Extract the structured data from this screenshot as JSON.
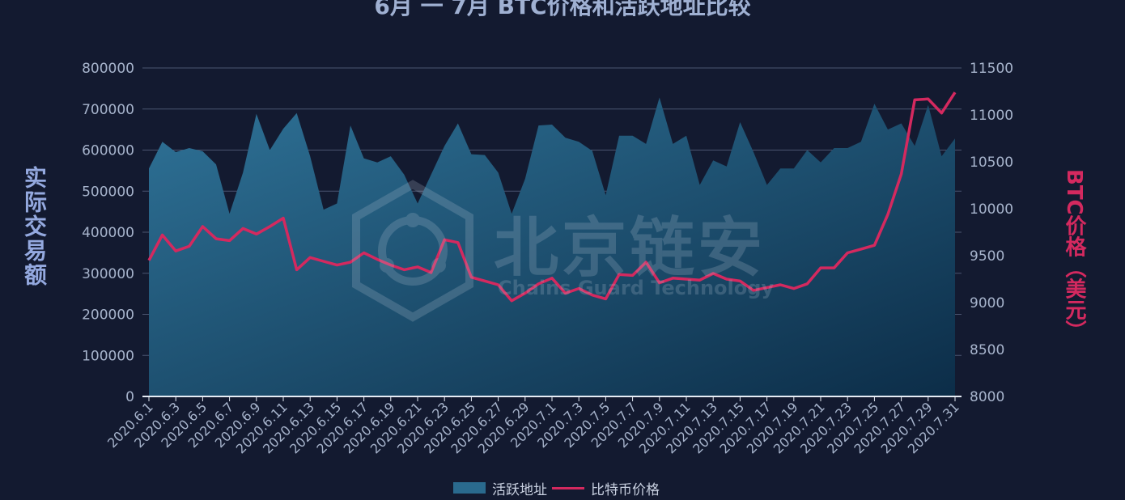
{
  "chart_data": {
    "type": "area+line",
    "title": "6月 一 7月 BTC价格和活跃地址比较",
    "y_left_label": "实际交易额",
    "y_right_label": "BTC价格（美元）",
    "y_left_lim": [
      0,
      800000
    ],
    "y_left_ticks": [
      "0",
      "100000",
      "200000",
      "300000",
      "400000",
      "500000",
      "600000",
      "700000",
      "800000"
    ],
    "y_right_lim": [
      8000,
      11500
    ],
    "y_right_ticks": [
      "8000",
      "8500",
      "9000",
      "9500",
      "10000",
      "10500",
      "11000",
      "11500"
    ],
    "x_tick_labels": [
      "2020.6.1",
      "2020.6.3",
      "2020.6.5",
      "2020.6.7",
      "2020.6.9",
      "2020.6.11",
      "2020.6.13",
      "2020.6.15",
      "2020.6.17",
      "2020.6.19",
      "2020.6.21",
      "2020.6.23",
      "2020.6.25",
      "2020.6.27",
      "2020.6.29",
      "2020.7.1",
      "2020.7.3",
      "2020.7.5",
      "2020.7.7",
      "2020.7.9",
      "2020.7.11",
      "2020.7.13",
      "2020.7.15",
      "2020.7.17",
      "2020.7.19",
      "2020.7.21",
      "2020.7.23",
      "2020.7.25",
      "2020.7.27",
      "2020.7.29",
      "2020.7.31"
    ],
    "legend": [
      "活跃地址",
      "比特币价格"
    ],
    "colors": {
      "area_top": "#2c6b8c",
      "area_bottom": "#0f3550",
      "line": "#d4295f",
      "grid": "#4b5570",
      "axis": "#e6ecf5",
      "tick_text": "#a7b4cc"
    },
    "series": [
      {
        "name": "活跃地址",
        "axis": "left",
        "type": "area",
        "values": [
          555000,
          620000,
          595000,
          605000,
          597000,
          565000,
          445000,
          545000,
          688000,
          600000,
          652000,
          690000,
          585000,
          455000,
          470000,
          660000,
          580000,
          570000,
          585000,
          540000,
          470000,
          540000,
          610000,
          665000,
          590000,
          588000,
          545000,
          445000,
          530000,
          660000,
          662000,
          630000,
          620000,
          598000,
          490000,
          635000,
          635000,
          615000,
          728000,
          615000,
          635000,
          515000,
          575000,
          560000,
          668000,
          595000,
          515000,
          555000,
          555000,
          600000,
          570000,
          605000,
          605000,
          620000,
          713000,
          650000,
          665000,
          610000,
          710000,
          585000,
          628000
        ]
      },
      {
        "name": "比特币价格",
        "axis": "right",
        "type": "line",
        "values": [
          9450,
          9720,
          9550,
          9600,
          9810,
          9680,
          9660,
          9790,
          9730,
          9810,
          9900,
          9350,
          9480,
          9440,
          9400,
          9430,
          9530,
          9460,
          9400,
          9350,
          9380,
          9320,
          9670,
          9640,
          9270,
          9230,
          9190,
          9020,
          9100,
          9200,
          9260,
          9100,
          9150,
          9080,
          9040,
          9300,
          9290,
          9430,
          9210,
          9260,
          9250,
          9240,
          9310,
          9250,
          9230,
          9130,
          9160,
          9190,
          9150,
          9200,
          9370,
          9370,
          9530,
          9570,
          9610,
          9940,
          10370,
          11160,
          11170,
          11020,
          11240
        ]
      }
    ]
  },
  "watermark": {
    "cn": "北京链安",
    "en": "Chains Guard Technology"
  }
}
